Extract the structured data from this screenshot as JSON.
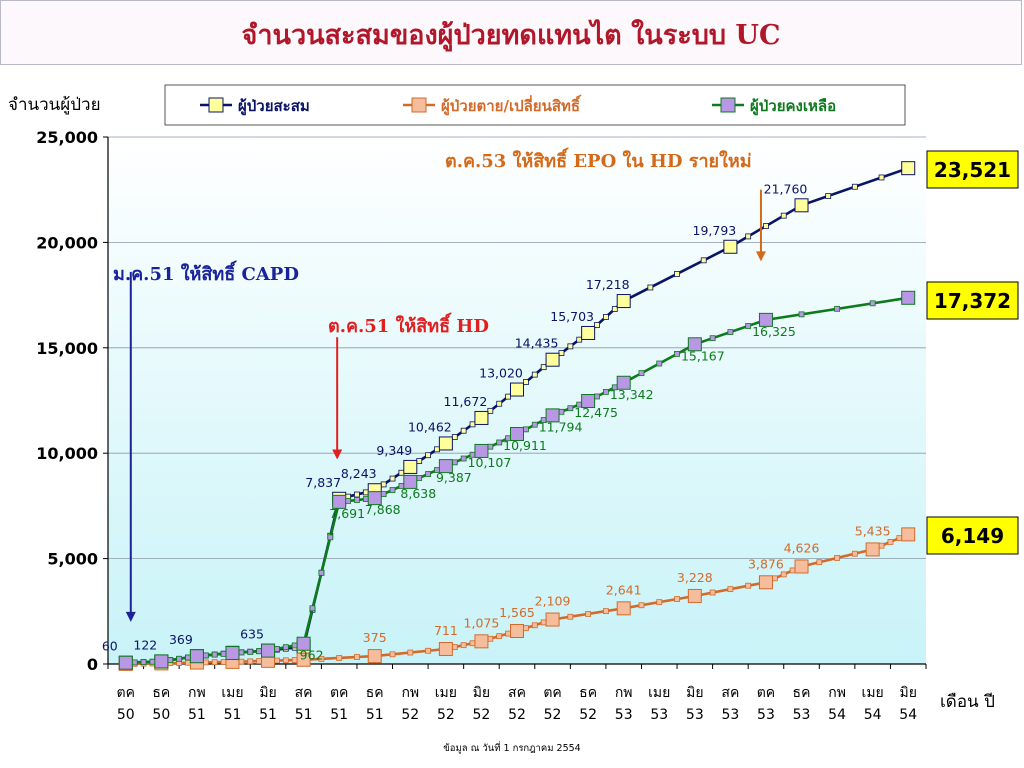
{
  "header": {
    "title": "จำนวนสะสมของผู้ป่วยทดแทนไต ในระบบ UC"
  },
  "footnote": "ข้อมูล ณ วันที่ 1 กรกฎาคม  2554",
  "colors": {
    "cumulative": "#0a1466",
    "cumulative_marker": "#ffff9c",
    "died": "#d36a2a",
    "died_marker": "#f6bd9c",
    "remaining": "#0e7a1e",
    "remaining_marker": "#b897e4",
    "plot_bg": "#dff7fb",
    "final_box": "#ffff00"
  },
  "chart_data": {
    "type": "line",
    "ylabel": "จำนวนผู้ป่วย",
    "xlabel": "เดือน  ปี",
    "ylim": [
      0,
      25000
    ],
    "yticks": [
      "0",
      "5,000",
      "10,000",
      "15,000",
      "20,000",
      "25,000"
    ],
    "ytick_values": [
      0,
      5000,
      10000,
      15000,
      20000,
      25000
    ],
    "x_months": [
      "ตค",
      "ธค",
      "กพ",
      "เมย",
      "มิย",
      "สค",
      "ตค",
      "ธค",
      "กพ",
      "เมย",
      "มิย",
      "สค",
      "ตค",
      "ธค",
      "กพ",
      "เมย",
      "มิย",
      "สค",
      "ตค",
      "ธค",
      "กพ",
      "เมย",
      "มิย"
    ],
    "x_years": [
      "50",
      "50",
      "51",
      "51",
      "51",
      "51",
      "51",
      "51",
      "52",
      "52",
      "52",
      "52",
      "52",
      "52",
      "53",
      "53",
      "53",
      "53",
      "53",
      "53",
      "54",
      "54",
      "54"
    ],
    "grid": true,
    "legend_position": "top",
    "series": [
      {
        "name": "ผู้ป่วยสะสม",
        "key": "cumulative",
        "values": [
          60,
          122,
          369,
          530,
          635,
          820,
          7837,
          8243,
          9349,
          10462,
          11672,
          13020,
          14435,
          15703,
          17218,
          19793,
          21760,
          23521
        ],
        "x_index": [
          0,
          1,
          2,
          3,
          4,
          5,
          6,
          7,
          8,
          9,
          10,
          11,
          12,
          13,
          14,
          17,
          19,
          22
        ],
        "labels": [
          "60",
          "122",
          "369",
          "",
          "635",
          "",
          "7,837",
          "8,243",
          "9,349",
          "10,462",
          "11,672",
          "13,020",
          "14,435",
          "15,703",
          "17,218",
          "19,793",
          "21,760",
          ""
        ]
      },
      {
        "name": "ผู้ป่วยตาย/เปลี่ยนสิทธิ์",
        "key": "died",
        "values": [
          5,
          30,
          70,
          100,
          150,
          200,
          375,
          711,
          1075,
          1565,
          2109,
          2641,
          3228,
          3876,
          4626,
          5435,
          6149
        ],
        "x_index": [
          0,
          1,
          2,
          3,
          4,
          5,
          7,
          9,
          10,
          11,
          12,
          14,
          16,
          18,
          19,
          21,
          22
        ],
        "labels": [
          "",
          "",
          "",
          "",
          "",
          "",
          "375",
          "711",
          "1,075",
          "1,565",
          "2,109",
          "2,641",
          "3,228",
          "3,876",
          "4,626",
          "5,435",
          ""
        ]
      },
      {
        "name": "ผู้ป่วยคงเหลือ",
        "key": "remaining",
        "values": [
          60,
          122,
          369,
          520,
          635,
          962,
          7691,
          7868,
          8638,
          9387,
          10107,
          10911,
          11794,
          12475,
          13342,
          15167,
          16325,
          17372
        ],
        "x_index": [
          0,
          1,
          2,
          3,
          4,
          5,
          6,
          7,
          8,
          9,
          10,
          11,
          12,
          13,
          14,
          16,
          18,
          22
        ],
        "labels": [
          "",
          "",
          "",
          "",
          "",
          "962",
          "7,691",
          "7,868",
          "8,638",
          "9,387",
          "10,107",
          "10,911",
          "11,794",
          "12,475",
          "13,342",
          "15,167",
          "16,325",
          ""
        ]
      }
    ],
    "final_values": [
      {
        "key": "cumulative",
        "label": "23,521"
      },
      {
        "key": "remaining",
        "label": "17,372"
      },
      {
        "key": "died",
        "label": "6,149"
      }
    ],
    "annotations": [
      {
        "text": "ม.ค.51 ให้สิทธิ์ CAPD",
        "color": "#1a2399",
        "arrow_x_index": 0,
        "arrow_from": 18600,
        "arrow_to": 2000
      },
      {
        "text": "ต.ค.51 ให้สิทธิ์ HD",
        "color": "#e02020",
        "arrow_x_index": 6,
        "arrow_from": 15500,
        "arrow_to": 9700
      },
      {
        "text": "ต.ค.53 ให้สิทธิ์ EPO ใน HD รายใหม่",
        "color": "#d36a1a",
        "arrow_x_index": 18,
        "arrow_from": 22500,
        "arrow_to": 19100
      }
    ]
  }
}
